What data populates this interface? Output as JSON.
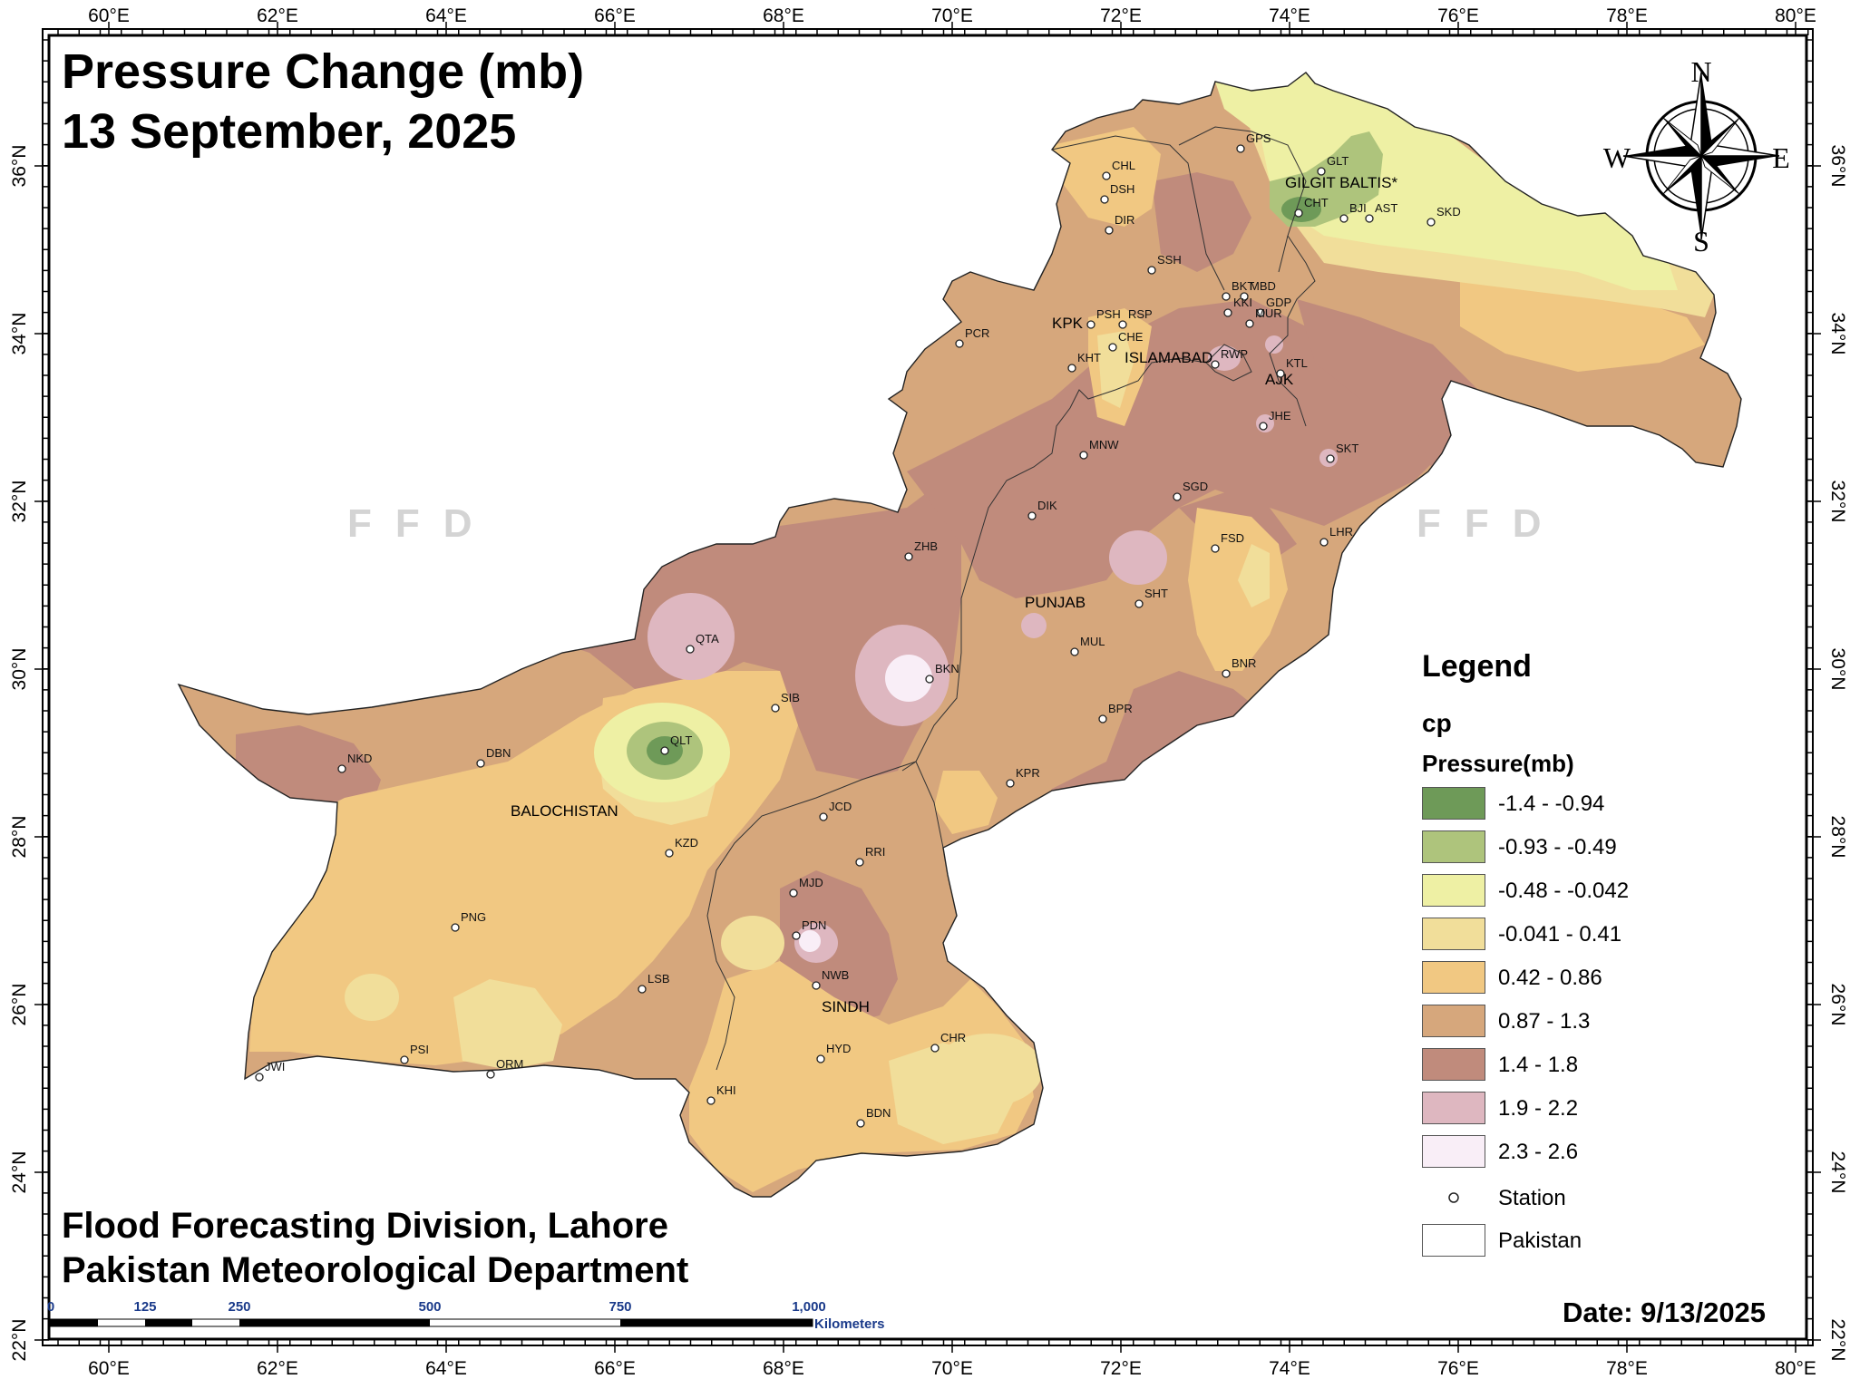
{
  "title": {
    "line1": "Pressure Change (mb)",
    "line2": "13 September, 2025"
  },
  "credits": {
    "line1": "Flood Forecasting Division, Lahore",
    "line2": "Pakistan Meteorological Department"
  },
  "date_label": "Date: 9/13/2025",
  "axes": {
    "lon_ticks": [
      "60°E",
      "62°E",
      "64°E",
      "66°E",
      "68°E",
      "70°E",
      "72°E",
      "74°E",
      "76°E",
      "78°E",
      "80°E"
    ],
    "lat_ticks": [
      "36°N",
      "34°N",
      "32°N",
      "30°N",
      "28°N",
      "26°N",
      "24°N",
      "22°N"
    ]
  },
  "compass": {
    "n": "N",
    "s": "S",
    "e": "E",
    "w": "W"
  },
  "watermark": {
    "text": "FFD"
  },
  "regions": {
    "gilgit": "GILGIT BALTIS*",
    "kpk": "KPK",
    "islamabad": "ISLAMABAD",
    "ajk": "AJK",
    "punjab": "PUNJAB",
    "balochistan": "BALOCHISTAN",
    "sindh": "SINDH"
  },
  "stations": [
    "GPS",
    "GLT",
    "CHT",
    "BJI",
    "AST",
    "SKD",
    "CHL",
    "DSH",
    "DIR",
    "SSH",
    "BKT",
    "MBD",
    "KKI",
    "GDP",
    "MUR",
    "PSH",
    "RSP",
    "CHE",
    "KHT",
    "RWP",
    "KTL",
    "PCR",
    "JHE",
    "MNW",
    "SKT",
    "SGD",
    "DIK",
    "LHR",
    "ZHB",
    "FSD",
    "SHT",
    "QTA",
    "BKN",
    "MUL",
    "BNR",
    "SIB",
    "BPR",
    "QLT",
    "NKD",
    "DBN",
    "KPR",
    "JCD",
    "KZD",
    "RRI",
    "MJD",
    "PNG",
    "PDN",
    "NWB",
    "LSB",
    "CHR",
    "HYD",
    "PSI",
    "JWI",
    "ORM",
    "KHI",
    "BDN"
  ],
  "legend": {
    "title": "Legend",
    "layer": "cp",
    "field": "Pressure(mb)",
    "classes": [
      {
        "label": "-1.4 - -0.94",
        "color": "#6e9a58"
      },
      {
        "label": "-0.93 - -0.49",
        "color": "#aec47c"
      },
      {
        "label": "-0.48 - -0.042",
        "color": "#eef0a4"
      },
      {
        "label": "-0.041 - 0.41",
        "color": "#f1de9a"
      },
      {
        "label": "0.42 - 0.86",
        "color": "#f1c882"
      },
      {
        "label": "0.87 - 1.3",
        "color": "#d6a77c"
      },
      {
        "label": "1.4 - 1.8",
        "color": "#c08b7c"
      },
      {
        "label": "1.9 - 2.2",
        "color": "#deb7c0"
      },
      {
        "label": "2.3 - 2.6",
        "color": "#f9eef7"
      }
    ],
    "station_label": "Station",
    "boundary_label": "Pakistan"
  },
  "scalebar": {
    "labels": [
      "0",
      "125",
      "250",
      "500",
      "750",
      "1,000"
    ],
    "units": "Kilometers"
  }
}
